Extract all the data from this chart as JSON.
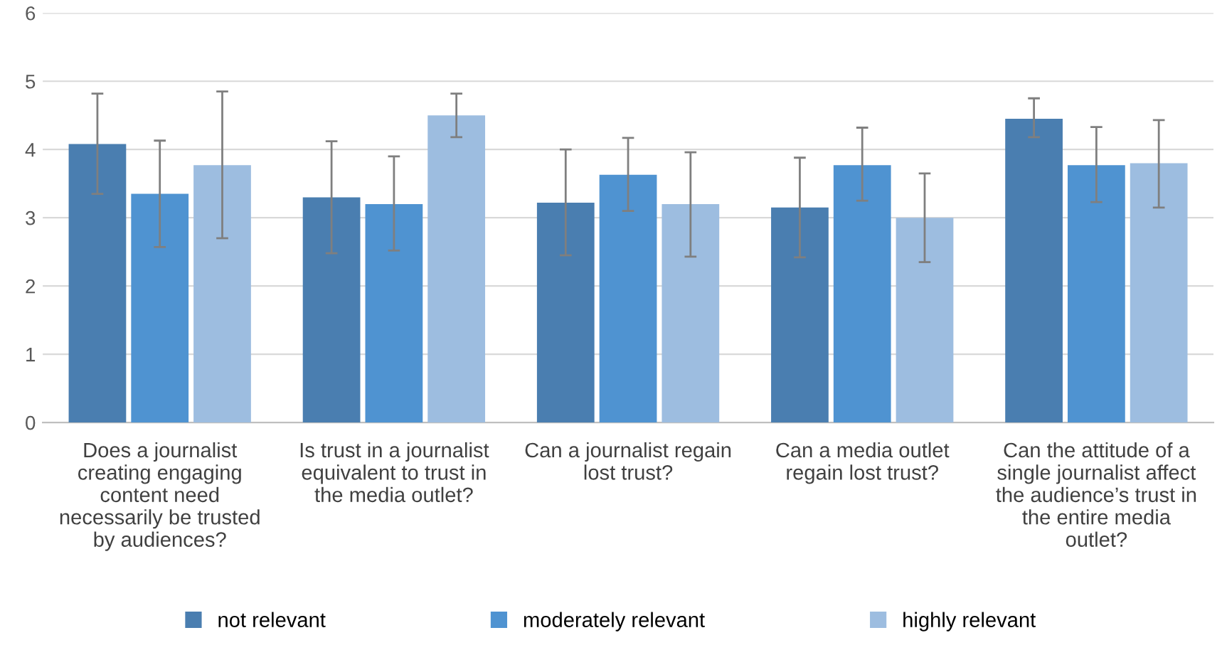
{
  "chart_data": {
    "type": "bar",
    "categories": [
      "Does a journalist\ncreating engaging\ncontent need\nnecessarily be trusted\nby audiences?",
      "Is trust in a journalist\nequivalent to trust in\nthe media outlet?",
      "Can a journalist regain\nlost trust?",
      "Can a media outlet\nregain lost trust?",
      "Can the attitude of a\nsingle journalist affect\nthe audience’s trust in\nthe entire media\noutlet?"
    ],
    "series": [
      {
        "name": "not relevant",
        "color": "#4a7eb0",
        "values": [
          4.08,
          3.3,
          3.22,
          3.15,
          4.45
        ],
        "errors": [
          [
            3.35,
            4.82
          ],
          [
            2.48,
            4.12
          ],
          [
            2.45,
            4.0
          ],
          [
            2.42,
            3.88
          ],
          [
            4.18,
            4.75
          ]
        ]
      },
      {
        "name": "moderately relevant",
        "color": "#4f93d1",
        "values": [
          3.35,
          3.2,
          3.63,
          3.77,
          3.77
        ],
        "errors": [
          [
            2.57,
            4.13
          ],
          [
            2.52,
            3.9
          ],
          [
            3.1,
            4.17
          ],
          [
            3.25,
            4.32
          ],
          [
            3.23,
            4.33
          ]
        ]
      },
      {
        "name": "highly relevant",
        "color": "#9dbde0",
        "values": [
          3.77,
          4.5,
          3.2,
          3.0,
          3.8
        ],
        "errors": [
          [
            2.7,
            4.85
          ],
          [
            4.18,
            4.82
          ],
          [
            2.43,
            3.96
          ],
          [
            2.35,
            3.65
          ],
          [
            3.15,
            4.43
          ]
        ]
      }
    ],
    "ylim": [
      0,
      6
    ],
    "yticks": [
      0,
      1,
      2,
      3,
      4,
      5,
      6
    ],
    "grid": "y",
    "legend": "bottom"
  }
}
